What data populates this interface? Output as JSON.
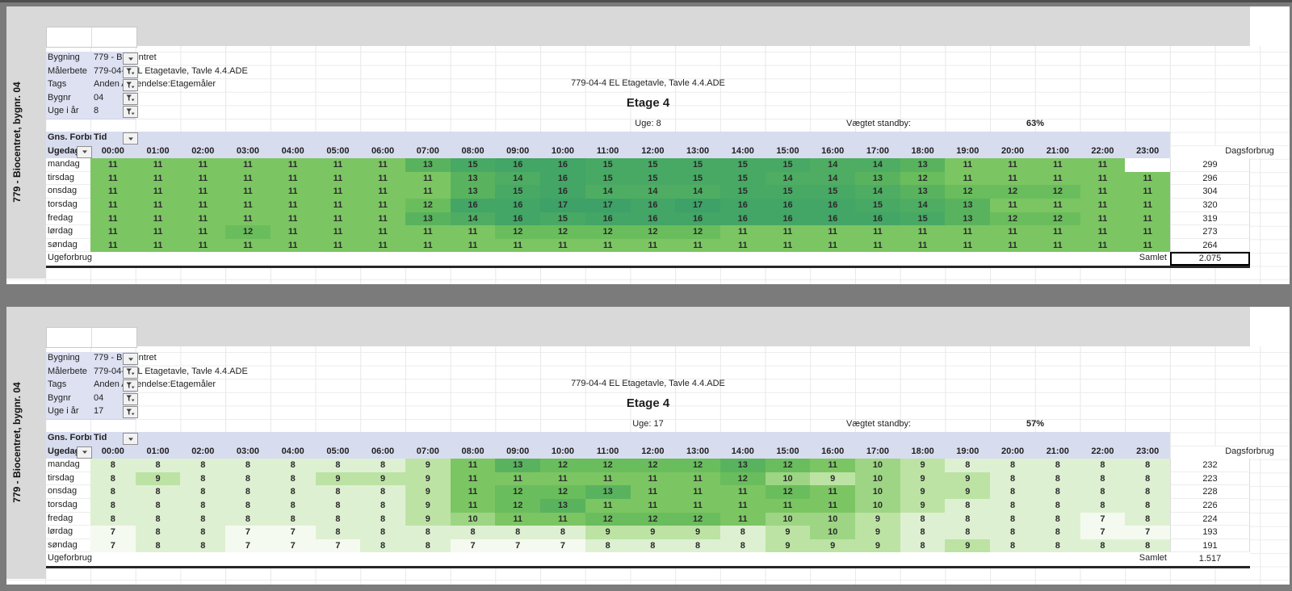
{
  "colors": {
    "heat_scale": {
      "7": "#f5faf0",
      "8": "#def0d2",
      "9": "#bce3a4",
      "10": "#9dd584",
      "11": "#7cc563",
      "12": "#6abd5c",
      "13": "#59b35e",
      "14": "#4ead62",
      "15": "#48a965",
      "16": "#43a566",
      "17": "#3ea167"
    },
    "header_band": "#d8dcef",
    "chrome_gray": "#d9d9d9",
    "divider_gray": "#7b7b7b",
    "blank_cell": "#ffffff"
  },
  "panels": [
    {
      "sidebar_label": "779 - Biocentret, bygnr. 04",
      "info": [
        {
          "label": "Bygning",
          "value": "779 - Biocentret",
          "icon": "chevron-down-icon"
        },
        {
          "label": "Målerbete",
          "value": "779-04-4 EL Etagetavle, Tavle 4.4.ADE",
          "icon": "filter-icon"
        },
        {
          "label": "Tags",
          "value": "Anden Anvendelse:Etagemåler",
          "icon": "filter-icon"
        },
        {
          "label": "Bygnr",
          "value": "04",
          "icon": "filter-icon"
        },
        {
          "label": "Uge i år",
          "value": "8",
          "icon": "filter-icon"
        }
      ],
      "title": "779-04-4 EL Etagetavle, Tavle 4.4.ADE",
      "subtitle": "Etage 4",
      "week_label": "Uge: 8",
      "standby_label": "Vægtet standby:",
      "standby_value": "63%",
      "table": {
        "corner_label": "Gns. Forbr",
        "tid_label": "Tid",
        "ugedag_label": "Ugedag",
        "hours": [
          "00:00",
          "01:00",
          "02:00",
          "03:00",
          "04:00",
          "05:00",
          "06:00",
          "07:00",
          "08:00",
          "09:00",
          "10:00",
          "11:00",
          "12:00",
          "13:00",
          "14:00",
          "15:00",
          "16:00",
          "17:00",
          "18:00",
          "19:00",
          "20:00",
          "21:00",
          "22:00",
          "23:00"
        ],
        "dagsforbrug_label": "Dagsforbrug",
        "rows": [
          {
            "day": "mandag",
            "values": [
              11,
              11,
              11,
              11,
              11,
              11,
              11,
              13,
              15,
              16,
              16,
              15,
              15,
              15,
              15,
              15,
              14,
              14,
              13,
              11,
              11,
              11,
              11,
              null
            ],
            "total": "299"
          },
          {
            "day": "tirsdag",
            "values": [
              11,
              11,
              11,
              11,
              11,
              11,
              11,
              11,
              13,
              14,
              16,
              15,
              15,
              15,
              15,
              14,
              14,
              13,
              12,
              11,
              11,
              11,
              11,
              11
            ],
            "total": "296"
          },
          {
            "day": "onsdag",
            "values": [
              11,
              11,
              11,
              11,
              11,
              11,
              11,
              11,
              13,
              15,
              16,
              14,
              14,
              14,
              15,
              15,
              15,
              14,
              13,
              12,
              12,
              12,
              11,
              11
            ],
            "total": "304"
          },
          {
            "day": "torsdag",
            "values": [
              11,
              11,
              11,
              11,
              11,
              11,
              11,
              12,
              16,
              16,
              17,
              17,
              16,
              17,
              16,
              16,
              16,
              15,
              14,
              13,
              11,
              11,
              11,
              11
            ],
            "total": "320"
          },
          {
            "day": "fredag",
            "values": [
              11,
              11,
              11,
              11,
              11,
              11,
              11,
              13,
              14,
              16,
              15,
              16,
              16,
              16,
              16,
              16,
              16,
              16,
              15,
              13,
              12,
              12,
              11,
              11
            ],
            "total": "319"
          },
          {
            "day": "lørdag",
            "values": [
              11,
              11,
              11,
              12,
              11,
              11,
              11,
              11,
              11,
              12,
              12,
              12,
              12,
              12,
              11,
              11,
              11,
              11,
              11,
              11,
              11,
              11,
              11,
              11
            ],
            "total": "273"
          },
          {
            "day": "søndag",
            "values": [
              11,
              11,
              11,
              11,
              11,
              11,
              11,
              11,
              11,
              11,
              11,
              11,
              11,
              11,
              11,
              11,
              11,
              11,
              11,
              11,
              11,
              11,
              11,
              11
            ],
            "total": "264"
          }
        ],
        "footer_label": "Ugeforbrug",
        "samlet_label": "Samlet",
        "samlet_value": "2.075",
        "total_box": true
      }
    },
    {
      "sidebar_label": "779 - Biocentret, bygnr. 04",
      "info": [
        {
          "label": "Bygning",
          "value": "779 - Biocentret",
          "icon": "chevron-down-icon"
        },
        {
          "label": "Målerbete",
          "value": "779-04-4 EL Etagetavle, Tavle 4.4.ADE",
          "icon": "filter-icon"
        },
        {
          "label": "Tags",
          "value": "Anden Anvendelse:Etagemåler",
          "icon": "filter-icon"
        },
        {
          "label": "Bygnr",
          "value": "04",
          "icon": "filter-icon"
        },
        {
          "label": "Uge i år",
          "value": "17",
          "icon": "filter-icon"
        }
      ],
      "title": "779-04-4 EL Etagetavle, Tavle 4.4.ADE",
      "subtitle": "Etage 4",
      "week_label": "Uge: 17",
      "standby_label": "Vægtet standby:",
      "standby_value": "57%",
      "table": {
        "corner_label": "Gns. Forbr",
        "tid_label": "Tid",
        "ugedag_label": "Ugedag",
        "hours": [
          "00:00",
          "01:00",
          "02:00",
          "03:00",
          "04:00",
          "05:00",
          "06:00",
          "07:00",
          "08:00",
          "09:00",
          "10:00",
          "11:00",
          "12:00",
          "13:00",
          "14:00",
          "15:00",
          "16:00",
          "17:00",
          "18:00",
          "19:00",
          "20:00",
          "21:00",
          "22:00",
          "23:00"
        ],
        "dagsforbrug_label": "Dagsforbrug",
        "rows": [
          {
            "day": "mandag",
            "values": [
              8,
              8,
              8,
              8,
              8,
              8,
              8,
              9,
              11,
              13,
              12,
              12,
              12,
              12,
              13,
              12,
              11,
              10,
              9,
              8,
              8,
              8,
              8,
              8
            ],
            "total": "232"
          },
          {
            "day": "tirsdag",
            "values": [
              8,
              9,
              8,
              8,
              8,
              9,
              9,
              9,
              11,
              11,
              11,
              11,
              11,
              11,
              12,
              10,
              9,
              10,
              9,
              9,
              8,
              8,
              8,
              8
            ],
            "total": "223"
          },
          {
            "day": "onsdag",
            "values": [
              8,
              8,
              8,
              8,
              8,
              8,
              8,
              9,
              11,
              12,
              12,
              13,
              11,
              11,
              11,
              12,
              11,
              10,
              9,
              9,
              8,
              8,
              8,
              8
            ],
            "total": "228"
          },
          {
            "day": "torsdag",
            "values": [
              8,
              8,
              8,
              8,
              8,
              8,
              8,
              9,
              11,
              12,
              13,
              11,
              11,
              11,
              11,
              11,
              11,
              10,
              9,
              8,
              8,
              8,
              8,
              8
            ],
            "total": "226"
          },
          {
            "day": "fredag",
            "values": [
              8,
              8,
              8,
              8,
              8,
              8,
              8,
              9,
              10,
              11,
              11,
              12,
              12,
              12,
              11,
              10,
              10,
              9,
              8,
              8,
              8,
              8,
              7,
              8
            ],
            "total": "224"
          },
          {
            "day": "lørdag",
            "values": [
              7,
              8,
              8,
              7,
              7,
              8,
              8,
              8,
              8,
              8,
              8,
              9,
              9,
              9,
              8,
              9,
              10,
              9,
              8,
              8,
              8,
              8,
              7,
              7
            ],
            "total": "193"
          },
          {
            "day": "søndag",
            "values": [
              7,
              8,
              8,
              7,
              7,
              7,
              8,
              8,
              7,
              7,
              7,
              8,
              8,
              8,
              8,
              9,
              9,
              9,
              8,
              9,
              8,
              8,
              8,
              8
            ],
            "total": "191"
          }
        ],
        "footer_label": "Ugeforbrug",
        "samlet_label": "Samlet",
        "samlet_value": "1.517",
        "total_box": false
      }
    }
  ]
}
